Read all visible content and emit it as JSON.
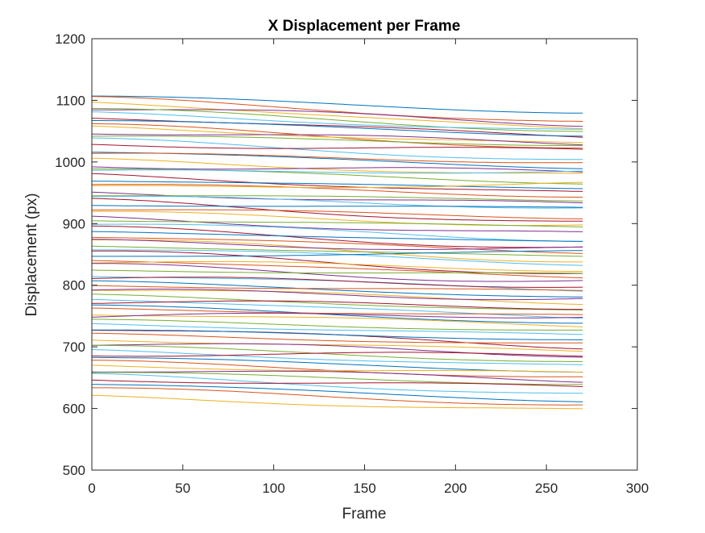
{
  "chart_data": {
    "type": "line",
    "title": "X Displacement per Frame",
    "xlabel": "Frame",
    "ylabel": "Displacement (px)",
    "xlim": [
      0,
      300
    ],
    "ylim": [
      500,
      1200
    ],
    "x_ticks": [
      "0",
      "50",
      "100",
      "150",
      "200",
      "250",
      "300"
    ],
    "y_ticks": [
      "500",
      "600",
      "700",
      "800",
      "900",
      "1000",
      "1100",
      "1200"
    ],
    "grid": false,
    "legend": "none",
    "frame_range": [
      0,
      271
    ],
    "colors": [
      "#0072BD",
      "#D95319",
      "#EDB120",
      "#7E2F8E",
      "#77AC30",
      "#4DBEEE",
      "#A2142F"
    ],
    "series_start_end": [
      [
        1107,
        1080
      ],
      [
        1104,
        1064
      ],
      [
        1098,
        1052
      ],
      [
        1089,
        1062
      ],
      [
        1086,
        1050
      ],
      [
        1079,
        1050
      ],
      [
        1074,
        1040
      ],
      [
        1068,
        1043
      ],
      [
        1060,
        1022
      ],
      [
        1057,
        1028
      ],
      [
        1050,
        1030
      ],
      [
        1042,
        1028
      ],
      [
        1036,
        1002
      ],
      [
        1029,
        1018
      ],
      [
        1017,
        990
      ],
      [
        1013,
        1000
      ],
      [
        1003,
        978
      ],
      [
        995,
        983
      ],
      [
        990,
        966
      ],
      [
        984,
        985
      ],
      [
        979,
        948
      ],
      [
        970,
        957
      ],
      [
        964,
        945
      ],
      [
        958,
        965
      ],
      [
        951,
        930
      ],
      [
        947,
        938
      ],
      [
        943,
        927
      ],
      [
        937,
        900
      ],
      [
        930,
        926
      ],
      [
        924,
        910
      ],
      [
        917,
        898
      ],
      [
        909,
        882
      ],
      [
        906,
        895
      ],
      [
        900,
        874
      ],
      [
        892,
        860
      ],
      [
        887,
        870
      ],
      [
        880,
        853
      ],
      [
        873,
        840
      ],
      [
        870,
        858
      ],
      [
        864,
        846
      ],
      [
        860,
        835
      ],
      [
        853,
        820
      ],
      [
        846,
        855
      ],
      [
        842,
        812
      ],
      [
        838,
        826
      ],
      [
        831,
        806
      ],
      [
        824,
        818
      ],
      [
        817,
        792
      ],
      [
        811,
        800
      ],
      [
        806,
        780
      ],
      [
        800,
        790
      ],
      [
        795,
        772
      ],
      [
        790,
        780
      ],
      [
        784,
        758
      ],
      [
        779,
        746
      ],
      [
        773,
        765
      ],
      [
        767,
        738
      ],
      [
        762,
        750
      ],
      [
        755,
        734
      ],
      [
        749,
        752
      ],
      [
        743,
        726
      ],
      [
        738,
        718
      ],
      [
        731,
        700
      ],
      [
        727,
        712
      ],
      [
        720,
        704
      ],
      [
        713,
        692
      ],
      [
        706,
        688
      ],
      [
        701,
        676
      ],
      [
        694,
        668
      ],
      [
        689,
        686
      ],
      [
        683,
        660
      ],
      [
        676,
        650
      ],
      [
        670,
        656
      ],
      [
        664,
        646
      ],
      [
        658,
        640
      ],
      [
        654,
        622
      ],
      [
        648,
        634
      ],
      [
        640,
        612
      ],
      [
        632,
        606
      ],
      [
        619,
        596
      ]
    ]
  }
}
